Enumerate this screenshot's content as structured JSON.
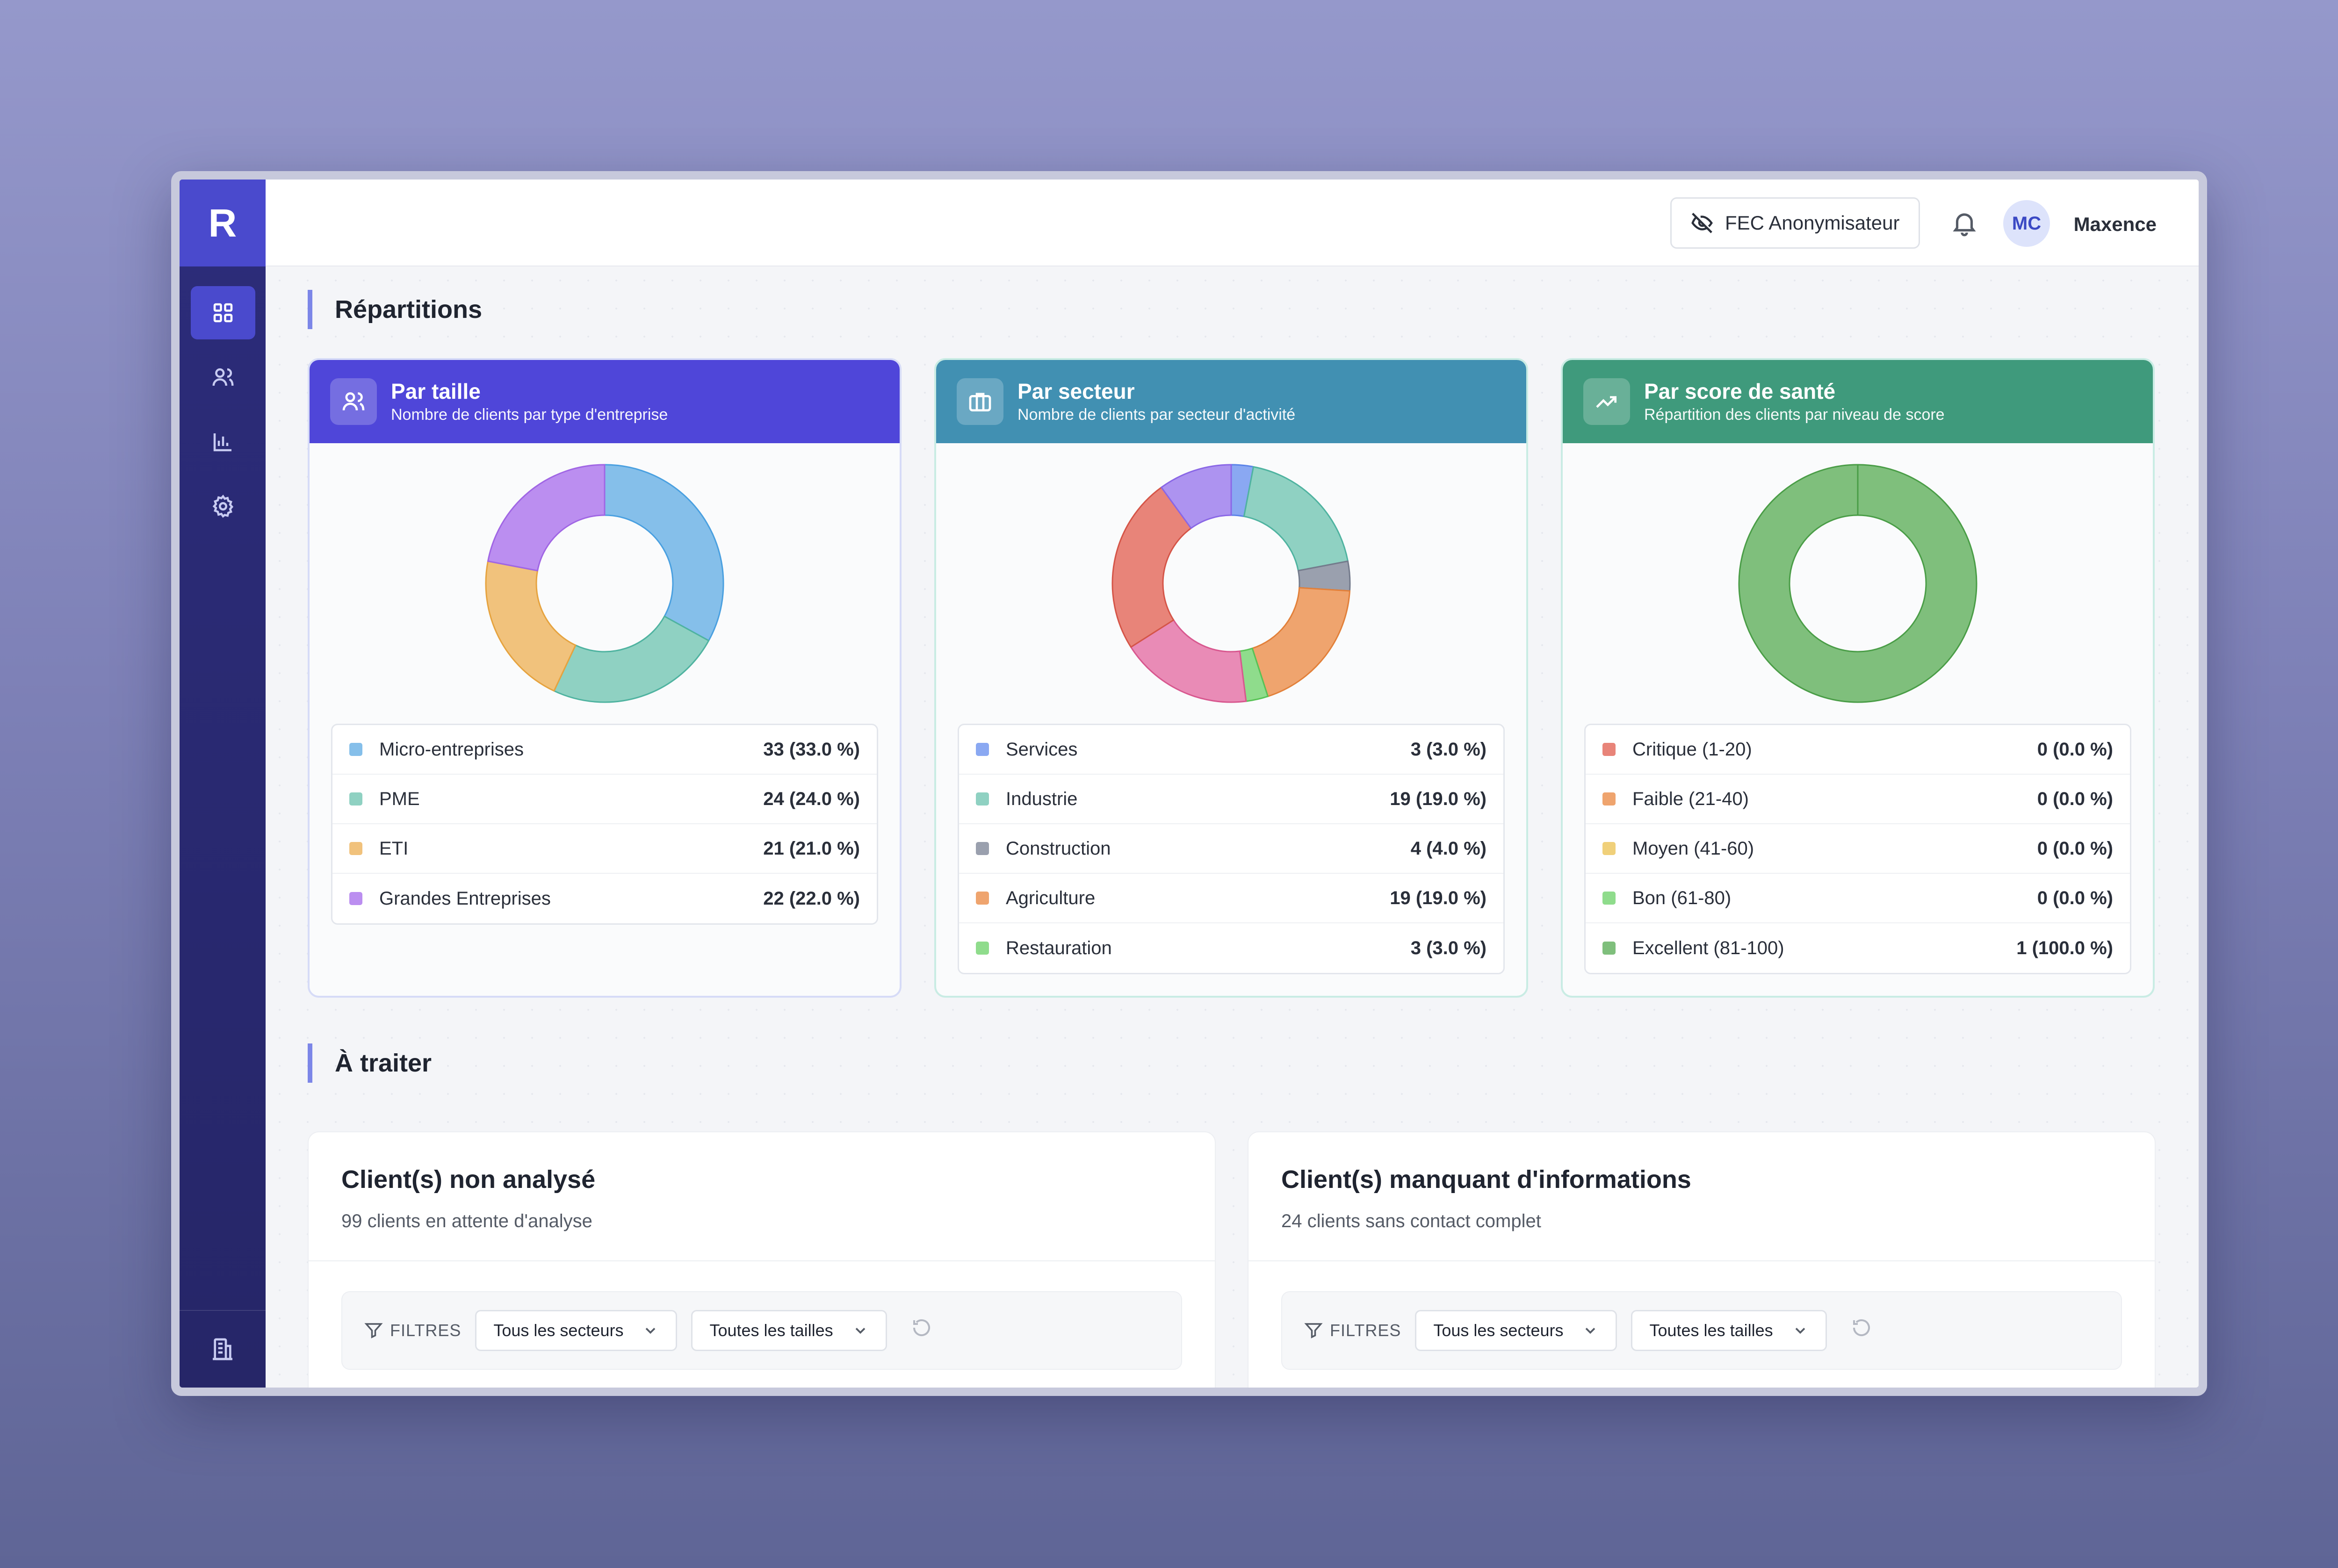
{
  "app": {
    "logo": "R"
  },
  "sidebar": {
    "items": [
      {
        "name": "dashboard",
        "icon": "grid-icon",
        "active": true
      },
      {
        "name": "clients",
        "icon": "users-icon",
        "active": false
      },
      {
        "name": "analytics",
        "icon": "bar-chart-icon",
        "active": false
      },
      {
        "name": "settings",
        "icon": "gear-icon",
        "active": false
      }
    ],
    "bottom_icon": "building-icon"
  },
  "header": {
    "fec_button": "FEC Anonymisateur",
    "fec_icon": "eye-off-icon",
    "avatar_initials": "MC",
    "username": "Maxence"
  },
  "sections": {
    "repartitions": "Répartitions",
    "a_traiter": "À traiter"
  },
  "cards": [
    {
      "title": "Par taille",
      "subtitle": "Nombre de clients par type d'entreprise",
      "icon": "users-icon",
      "header_color": "#4f46d9",
      "border_color": "#d6dbf7",
      "rows": [
        {
          "label": "Micro-entreprises",
          "value": "33 (33.0 %)",
          "count": 33,
          "fill": "#85bfea",
          "stroke": "#4aa0e0"
        },
        {
          "label": "PME",
          "value": "24 (24.0 %)",
          "count": 24,
          "fill": "#8fd1c2",
          "stroke": "#4fb3a0"
        },
        {
          "label": "ETI",
          "value": "21 (21.0 %)",
          "count": 21,
          "fill": "#f1c27c",
          "stroke": "#e6a33f"
        },
        {
          "label": "Grandes Entreprises",
          "value": "22 (22.0 %)",
          "count": 22,
          "fill": "#bb8ef0",
          "stroke": "#a066e4"
        }
      ]
    },
    {
      "title": "Par secteur",
      "subtitle": "Nombre de clients par secteur d'activité",
      "icon": "briefcase-icon",
      "header_color": "#4190b2",
      "border_color": "#c9ece4",
      "rows": [
        {
          "label": "Services",
          "value": "3 (3.0 %)",
          "count": 3,
          "fill": "#8aa8f2",
          "stroke": "#5b83e8"
        },
        {
          "label": "Industrie",
          "value": "19 (19.0 %)",
          "count": 19,
          "fill": "#8fd1c2",
          "stroke": "#4fb3a0"
        },
        {
          "label": "Construction",
          "value": "4 (4.0 %)",
          "count": 4,
          "fill": "#9aa0ae",
          "stroke": "#747b8c"
        },
        {
          "label": "Agriculture",
          "value": "19 (19.0 %)",
          "count": 19,
          "fill": "#efa46e",
          "stroke": "#e2803a"
        },
        {
          "label": "Restauration",
          "value": "3 (3.0 %)",
          "count": 3,
          "fill": "#8fdc8c",
          "stroke": "#58c256"
        }
      ],
      "hidden_slices": [
        {
          "count": 18,
          "fill": "#e98bb6",
          "stroke": "#d8588f"
        },
        {
          "count": 24,
          "fill": "#e88479",
          "stroke": "#d55548"
        },
        {
          "count": 10,
          "fill": "#ad93f0",
          "stroke": "#8a67e6"
        }
      ]
    },
    {
      "title": "Par score de santé",
      "subtitle": "Répartition des clients par niveau de score",
      "icon": "trending-up-icon",
      "header_color": "#3f9a7c",
      "border_color": "#c9ece4",
      "rows": [
        {
          "label": "Critique (1-20)",
          "value": "0 (0.0 %)",
          "count": 0,
          "fill": "#e88479",
          "stroke": "#d55548"
        },
        {
          "label": "Faible (21-40)",
          "value": "0 (0.0 %)",
          "count": 0,
          "fill": "#efa46e",
          "stroke": "#e2803a"
        },
        {
          "label": "Moyen (41-60)",
          "value": "0 (0.0 %)",
          "count": 0,
          "fill": "#f0d07a",
          "stroke": "#e0b53e"
        },
        {
          "label": "Bon (61-80)",
          "value": "0 (0.0 %)",
          "count": 0,
          "fill": "#8fdc8c",
          "stroke": "#58c256"
        },
        {
          "label": "Excellent (81-100)",
          "value": "1 (100.0 %)",
          "count": 1,
          "fill": "#7fbf7c",
          "stroke": "#4a9d47"
        }
      ]
    }
  ],
  "tasks": [
    {
      "title": "Client(s) non analysé",
      "subtitle": "99 clients en attente d'analyse",
      "filters_label": "FILTRES",
      "sector_select": "Tous les secteurs",
      "size_select": "Toutes les tailles"
    },
    {
      "title": "Client(s) manquant d'informations",
      "subtitle": "24 clients sans contact complet",
      "filters_label": "FILTRES",
      "sector_select": "Tous les secteurs",
      "size_select": "Toutes les tailles"
    }
  ]
}
